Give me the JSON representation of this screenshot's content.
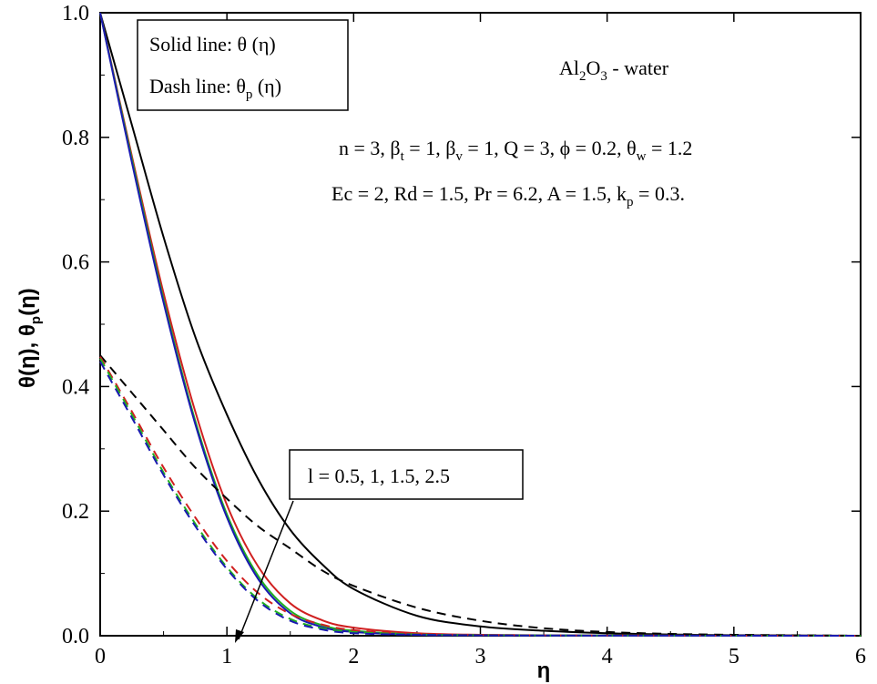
{
  "chart_data": {
    "type": "line",
    "xlabel": "η",
    "ylabel_main": "θ(η), θ",
    "ylabel_sub": "p",
    "ylabel_tail": "(η)",
    "xlim": [
      0,
      6
    ],
    "ylim": [
      0,
      1.0
    ],
    "x_ticks": [
      "0",
      "1",
      "2",
      "3",
      "4",
      "5",
      "6"
    ],
    "y_ticks": [
      "0.0",
      "0.2",
      "0.4",
      "0.6",
      "0.8",
      "1.0"
    ],
    "legend": {
      "solid_label": "Solid line:  θ (η)",
      "dash_main": "Dash  line: θ",
      "dash_sub": "p",
      "dash_tail": " (η)"
    },
    "fluid_label": {
      "a": "Al",
      "a_sub": "2",
      "b": "O",
      "b_sub": "3",
      "tail": " - water"
    },
    "params_line1": {
      "p1": "n = 3, β",
      "s1": "t",
      "p2": " = 1, β",
      "s2": "v",
      "p3": " = 1, Q = 3, ϕ = 0.2, θ",
      "s3": "w",
      "p4": " = 1.2"
    },
    "params_line2": {
      "p1": "Ec = 2, Rd = 1.5, Pr = 6.2, A = 1.5, k",
      "s1": "p",
      "p2": " = 0.3."
    },
    "annotation": "l = 0.5, 1, 1.5, 2.5",
    "series": [
      {
        "line": "solid",
        "color": "#000000",
        "x": [
          0,
          0.25,
          0.5,
          0.75,
          1.0,
          1.25,
          1.5,
          1.75,
          2.0,
          2.5,
          3.0,
          3.5,
          4.0,
          4.5,
          5.0,
          6.0
        ],
        "y": [
          1.0,
          0.82,
          0.64,
          0.48,
          0.355,
          0.25,
          0.17,
          0.115,
          0.075,
          0.032,
          0.015,
          0.008,
          0.004,
          0.002,
          0.001,
          0.0
        ]
      },
      {
        "line": "solid",
        "color": "#d02020",
        "x": [
          0,
          0.25,
          0.5,
          0.75,
          1.0,
          1.25,
          1.5,
          1.75,
          2.0,
          2.5,
          3.0,
          3.5,
          4.0,
          5.0,
          6.0
        ],
        "y": [
          1.0,
          0.77,
          0.55,
          0.36,
          0.21,
          0.11,
          0.052,
          0.025,
          0.013,
          0.004,
          0.0015,
          0.0008,
          0.0005,
          0.0002,
          0.0
        ]
      },
      {
        "line": "solid",
        "color": "#20b020",
        "x": [
          0,
          0.25,
          0.5,
          0.75,
          1.0,
          1.25,
          1.5,
          1.75,
          2.0,
          2.5,
          3.0,
          4.0,
          5.0,
          6.0
        ],
        "y": [
          1.0,
          0.765,
          0.54,
          0.345,
          0.195,
          0.095,
          0.04,
          0.017,
          0.008,
          0.002,
          0.001,
          0.0003,
          0.0001,
          0.0
        ]
      },
      {
        "line": "solid",
        "color": "#1a1ab0",
        "x": [
          0,
          0.25,
          0.5,
          0.75,
          1.0,
          1.25,
          1.5,
          1.75,
          2.0,
          2.5,
          3.0,
          4.0,
          5.0,
          6.0
        ],
        "y": [
          1.0,
          0.76,
          0.535,
          0.34,
          0.19,
          0.09,
          0.036,
          0.014,
          0.006,
          0.0015,
          0.0008,
          0.0002,
          0.0001,
          0.0
        ]
      },
      {
        "line": "dash",
        "color": "#000000",
        "x": [
          0,
          0.25,
          0.5,
          0.75,
          1.0,
          1.25,
          1.5,
          1.75,
          2.0,
          2.5,
          3.0,
          3.5,
          4.0,
          4.5,
          5.0,
          6.0
        ],
        "y": [
          0.45,
          0.39,
          0.33,
          0.27,
          0.22,
          0.175,
          0.14,
          0.105,
          0.08,
          0.045,
          0.024,
          0.012,
          0.006,
          0.003,
          0.0015,
          0.0
        ]
      },
      {
        "line": "dash",
        "color": "#d02020",
        "x": [
          0,
          0.25,
          0.5,
          0.75,
          1.0,
          1.25,
          1.5,
          1.75,
          2.0,
          2.5,
          3.0,
          4.0,
          5.0,
          6.0
        ],
        "y": [
          0.448,
          0.36,
          0.27,
          0.19,
          0.12,
          0.068,
          0.035,
          0.018,
          0.009,
          0.003,
          0.0012,
          0.0004,
          0.0001,
          0.0
        ]
      },
      {
        "line": "dash",
        "color": "#20b020",
        "x": [
          0,
          0.25,
          0.5,
          0.75,
          1.0,
          1.25,
          1.5,
          1.75,
          2.0,
          2.5,
          3.0,
          4.0,
          5.0,
          6.0
        ],
        "y": [
          0.445,
          0.355,
          0.262,
          0.18,
          0.11,
          0.058,
          0.027,
          0.012,
          0.006,
          0.002,
          0.0008,
          0.0003,
          0.0001,
          0.0
        ]
      },
      {
        "line": "dash",
        "color": "#1a1ab0",
        "x": [
          0,
          0.25,
          0.5,
          0.75,
          1.0,
          1.25,
          1.5,
          1.75,
          2.0,
          2.5,
          3.0,
          4.0,
          5.0,
          6.0
        ],
        "y": [
          0.44,
          0.35,
          0.258,
          0.176,
          0.107,
          0.055,
          0.024,
          0.01,
          0.004,
          0.0015,
          0.0006,
          0.0002,
          0.0001,
          0.0
        ]
      }
    ]
  }
}
